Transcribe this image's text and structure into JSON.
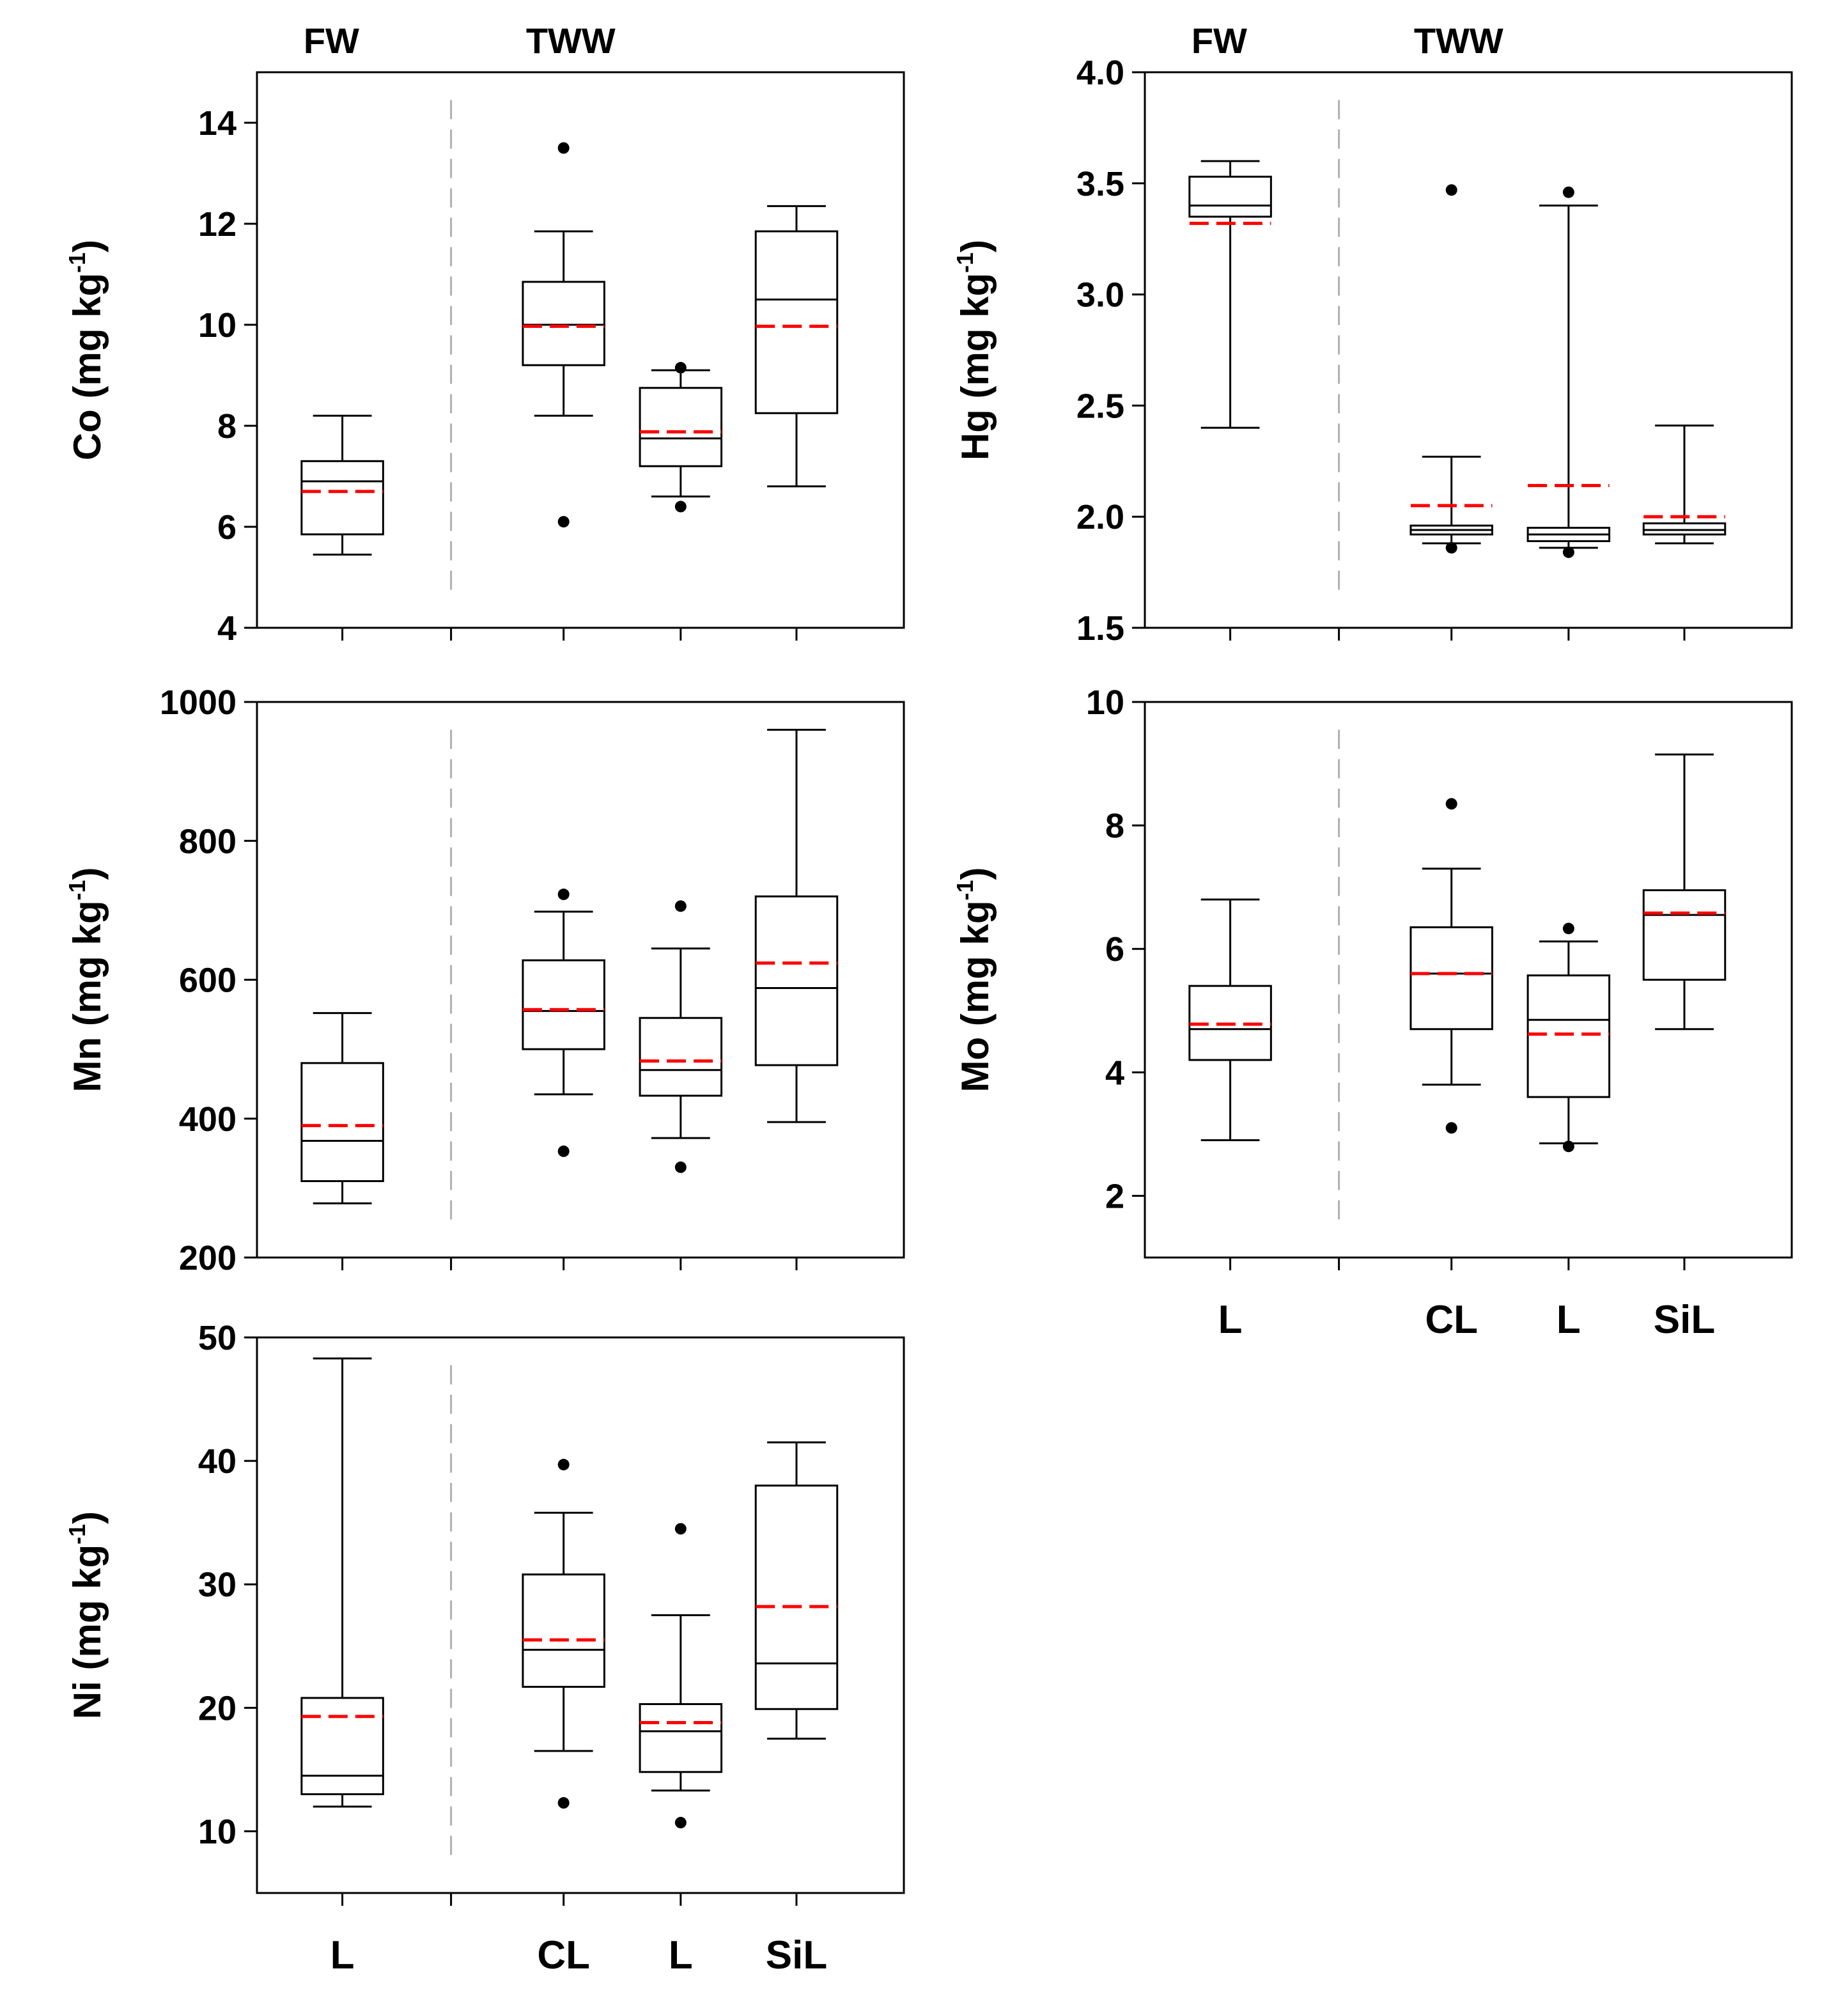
{
  "figure": {
    "group_labels": [
      "FW",
      "TWW"
    ],
    "category_labels": [
      "L",
      "CL",
      "L",
      "SiL"
    ],
    "colors": {
      "box": "#000000",
      "mean_line": "#ff0000",
      "separator": "#b0b0b0",
      "outlier": "#000000"
    }
  },
  "chart_data": [
    {
      "id": "co",
      "type": "box",
      "element": "Co",
      "ylabel_main": "Co (mg kg",
      "ylabel_sup": "-1",
      "ylabel_end": ")",
      "ylim": [
        4,
        15
      ],
      "yticks": [
        4,
        6,
        8,
        10,
        12,
        14
      ],
      "ytick_labels": [
        "4",
        "6",
        "8",
        "10",
        "12",
        "14"
      ],
      "show_group_labels": true,
      "show_category_labels": false,
      "boxes": [
        {
          "group": "FW",
          "category": "L",
          "whisker_low": 5.45,
          "q1": 5.85,
          "median": 6.9,
          "q3": 7.3,
          "whisker_high": 8.2,
          "mean": 6.7,
          "outliers": []
        },
        {
          "group": "TWW",
          "category": "CL",
          "whisker_low": 8.2,
          "q1": 9.2,
          "median": 10.0,
          "q3": 10.85,
          "whisker_high": 11.85,
          "mean": 9.97,
          "outliers": [
            13.5,
            6.1
          ]
        },
        {
          "group": "TWW",
          "category": "L",
          "whisker_low": 6.6,
          "q1": 7.2,
          "median": 7.75,
          "q3": 8.75,
          "whisker_high": 9.1,
          "mean": 7.88,
          "outliers": [
            9.15,
            6.4
          ]
        },
        {
          "group": "TWW",
          "category": "SiL",
          "whisker_low": 6.8,
          "q1": 8.25,
          "median": 10.5,
          "q3": 11.85,
          "whisker_high": 12.35,
          "mean": 9.97,
          "outliers": []
        }
      ]
    },
    {
      "id": "hg",
      "type": "box",
      "element": "Hg",
      "ylabel_main": "Hg (mg kg",
      "ylabel_sup": "-1",
      "ylabel_end": ")",
      "ylim": [
        1.5,
        4.0
      ],
      "yticks": [
        1.5,
        2.0,
        2.5,
        3.0,
        3.5,
        4.0
      ],
      "ytick_labels": [
        "1.5",
        "2.0",
        "2.5",
        "3.0",
        "3.5",
        "4.0"
      ],
      "show_group_labels": true,
      "show_category_labels": false,
      "boxes": [
        {
          "group": "FW",
          "category": "L",
          "whisker_low": 2.4,
          "q1": 3.35,
          "median": 3.4,
          "q3": 3.53,
          "whisker_high": 3.6,
          "mean": 3.32,
          "outliers": []
        },
        {
          "group": "TWW",
          "category": "CL",
          "whisker_low": 1.88,
          "q1": 1.92,
          "median": 1.94,
          "q3": 1.96,
          "whisker_high": 2.27,
          "mean": 2.05,
          "outliers": [
            3.47,
            1.86
          ]
        },
        {
          "group": "TWW",
          "category": "L",
          "whisker_low": 1.86,
          "q1": 1.89,
          "median": 1.92,
          "q3": 1.95,
          "whisker_high": 3.4,
          "mean": 2.14,
          "outliers": [
            3.46,
            1.84
          ]
        },
        {
          "group": "TWW",
          "category": "SiL",
          "whisker_low": 1.88,
          "q1": 1.92,
          "median": 1.94,
          "q3": 1.97,
          "whisker_high": 2.41,
          "mean": 2.0,
          "outliers": []
        }
      ]
    },
    {
      "id": "mn",
      "type": "box",
      "element": "Mn",
      "ylabel_main": "Mn (mg kg",
      "ylabel_sup": "-1",
      "ylabel_end": ")",
      "ylim": [
        200,
        1000
      ],
      "yticks": [
        200,
        400,
        600,
        800,
        1000
      ],
      "ytick_labels": [
        "200",
        "400",
        "600",
        "800",
        "1000"
      ],
      "show_group_labels": false,
      "show_category_labels": false,
      "boxes": [
        {
          "group": "FW",
          "category": "L",
          "whisker_low": 278,
          "q1": 310,
          "median": 368,
          "q3": 480,
          "whisker_high": 552,
          "mean": 390,
          "outliers": []
        },
        {
          "group": "TWW",
          "category": "CL",
          "whisker_low": 435,
          "q1": 500,
          "median": 555,
          "q3": 628,
          "whisker_high": 698,
          "mean": 557,
          "outliers": [
            723,
            353
          ]
        },
        {
          "group": "TWW",
          "category": "L",
          "whisker_low": 372,
          "q1": 433,
          "median": 470,
          "q3": 545,
          "whisker_high": 645,
          "mean": 483,
          "outliers": [
            706,
            330
          ]
        },
        {
          "group": "TWW",
          "category": "SiL",
          "whisker_low": 395,
          "q1": 477,
          "median": 588,
          "q3": 720,
          "whisker_high": 960,
          "mean": 624,
          "outliers": []
        }
      ]
    },
    {
      "id": "mo",
      "type": "box",
      "element": "Mo",
      "ylabel_main": "Mo (mg kg",
      "ylabel_sup": "-1",
      "ylabel_end": ")",
      "ylim": [
        1,
        10
      ],
      "yticks": [
        2,
        4,
        6,
        8,
        10
      ],
      "ytick_labels": [
        "2",
        "4",
        "6",
        "8",
        "10"
      ],
      "show_group_labels": false,
      "show_category_labels": true,
      "boxes": [
        {
          "group": "FW",
          "category": "L",
          "whisker_low": 2.9,
          "q1": 4.2,
          "median": 4.7,
          "q3": 5.4,
          "whisker_high": 6.8,
          "mean": 4.78,
          "outliers": []
        },
        {
          "group": "TWW",
          "category": "CL",
          "whisker_low": 3.8,
          "q1": 4.7,
          "median": 5.6,
          "q3": 6.35,
          "whisker_high": 7.3,
          "mean": 5.6,
          "outliers": [
            8.35,
            3.1
          ]
        },
        {
          "group": "TWW",
          "category": "L",
          "whisker_low": 2.85,
          "q1": 3.6,
          "median": 4.85,
          "q3": 5.57,
          "whisker_high": 6.12,
          "mean": 4.62,
          "outliers": [
            6.33,
            2.8
          ]
        },
        {
          "group": "TWW",
          "category": "SiL",
          "whisker_low": 4.7,
          "q1": 5.5,
          "median": 6.55,
          "q3": 6.95,
          "whisker_high": 9.15,
          "mean": 6.58,
          "outliers": []
        }
      ]
    },
    {
      "id": "ni",
      "type": "box",
      "element": "Ni",
      "ylabel_main": "Ni (mg kg",
      "ylabel_sup": "-1",
      "ylabel_end": ")",
      "ylim": [
        5,
        50
      ],
      "yticks": [
        10,
        20,
        30,
        40,
        50
      ],
      "ytick_labels": [
        "10",
        "20",
        "30",
        "40",
        "50"
      ],
      "show_group_labels": false,
      "show_category_labels": true,
      "boxes": [
        {
          "group": "FW",
          "category": "L",
          "whisker_low": 12.0,
          "q1": 13.0,
          "median": 14.5,
          "q3": 20.8,
          "whisker_high": 48.3,
          "mean": 19.3,
          "outliers": []
        },
        {
          "group": "TWW",
          "category": "CL",
          "whisker_low": 16.5,
          "q1": 21.7,
          "median": 24.7,
          "q3": 30.8,
          "whisker_high": 35.8,
          "mean": 25.5,
          "outliers": [
            39.7,
            12.3
          ]
        },
        {
          "group": "TWW",
          "category": "L",
          "whisker_low": 13.3,
          "q1": 14.8,
          "median": 18.1,
          "q3": 20.3,
          "whisker_high": 27.5,
          "mean": 18.8,
          "outliers": [
            34.5,
            10.7
          ]
        },
        {
          "group": "TWW",
          "category": "SiL",
          "whisker_low": 17.5,
          "q1": 19.9,
          "median": 23.6,
          "q3": 38.0,
          "whisker_high": 41.5,
          "mean": 28.2,
          "outliers": []
        }
      ]
    }
  ]
}
